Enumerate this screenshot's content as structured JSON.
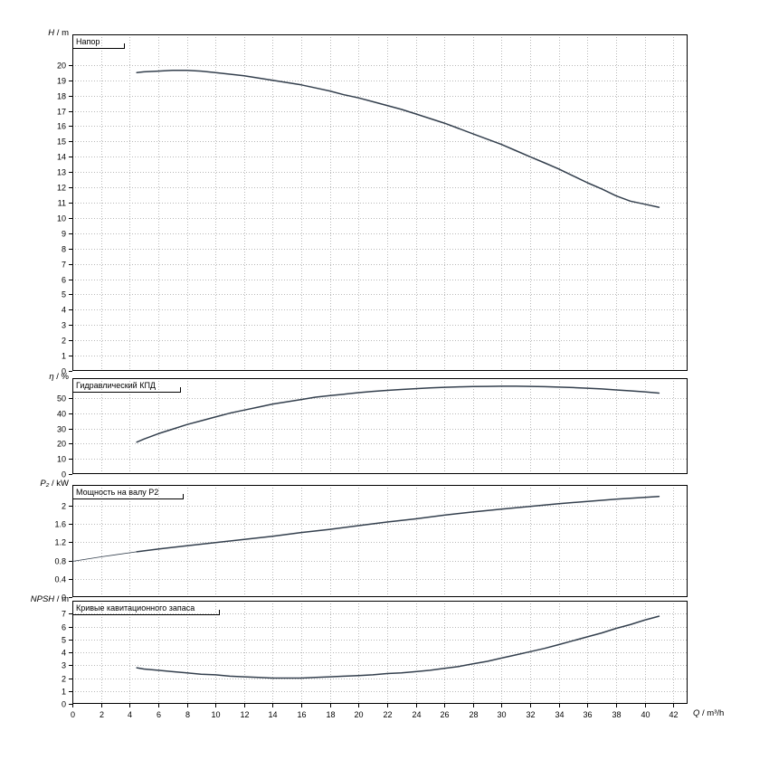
{
  "figure": {
    "background": "#ffffff",
    "curve_color": "#333f4d",
    "grid_color": "#b8b8b8",
    "axis_color": "#000000",
    "tick_label_color": "#000000"
  },
  "x_axis": {
    "label_var": "Q",
    "label_unit": "/ m³/h",
    "min": 0,
    "max": 43,
    "ticks": [
      0,
      2,
      4,
      6,
      8,
      10,
      12,
      14,
      16,
      18,
      20,
      22,
      24,
      26,
      28,
      30,
      32,
      34,
      36,
      38,
      40,
      42
    ]
  },
  "chart_data": [
    {
      "type": "line",
      "title": "Напор",
      "ylabel_var": "H",
      "ylabel_unit": "/ m",
      "xlabel": "Q / m³/h",
      "ylim": [
        0,
        22
      ],
      "yticks": [
        0,
        1,
        2,
        3,
        4,
        5,
        6,
        7,
        8,
        9,
        10,
        11,
        12,
        13,
        14,
        15,
        16,
        17,
        18,
        19,
        20
      ],
      "grid": true,
      "legend": "none",
      "series": [
        {
          "name": "head-curve",
          "width": 1.5,
          "points": [
            [
              4.5,
              19.5
            ],
            [
              5,
              19.55
            ],
            [
              6,
              19.6
            ],
            [
              7,
              19.65
            ],
            [
              8,
              19.65
            ],
            [
              9,
              19.6
            ],
            [
              10,
              19.5
            ],
            [
              11,
              19.4
            ],
            [
              12,
              19.3
            ],
            [
              13,
              19.15
            ],
            [
              14,
              19.0
            ],
            [
              15,
              18.85
            ],
            [
              16,
              18.7
            ],
            [
              17,
              18.5
            ],
            [
              18,
              18.3
            ],
            [
              19,
              18.05
            ],
            [
              20,
              17.85
            ],
            [
              21,
              17.6
            ],
            [
              22,
              17.35
            ],
            [
              23,
              17.1
            ],
            [
              24,
              16.8
            ],
            [
              25,
              16.5
            ],
            [
              26,
              16.2
            ],
            [
              27,
              15.85
            ],
            [
              28,
              15.5
            ],
            [
              29,
              15.15
            ],
            [
              30,
              14.8
            ],
            [
              31,
              14.4
            ],
            [
              32,
              14.0
            ],
            [
              33,
              13.6
            ],
            [
              34,
              13.2
            ],
            [
              35,
              12.75
            ],
            [
              36,
              12.3
            ],
            [
              37,
              11.9
            ],
            [
              38,
              11.45
            ],
            [
              39,
              11.1
            ],
            [
              40,
              10.9
            ],
            [
              41,
              10.7
            ]
          ]
        }
      ]
    },
    {
      "type": "line",
      "title": "Гидравлический КПД",
      "ylabel_var": "η",
      "ylabel_unit": "/ %",
      "ylim": [
        0,
        63
      ],
      "yticks": [
        0,
        10,
        20,
        30,
        40,
        50
      ],
      "grid": true,
      "legend": "none",
      "series": [
        {
          "name": "efficiency-curve",
          "width": 1.5,
          "points": [
            [
              4.5,
              21
            ],
            [
              5,
              23
            ],
            [
              6,
              26.5
            ],
            [
              7,
              29.5
            ],
            [
              8,
              32.5
            ],
            [
              9,
              35
            ],
            [
              10,
              37.5
            ],
            [
              11,
              40
            ],
            [
              12,
              42
            ],
            [
              13,
              44
            ],
            [
              14,
              46
            ],
            [
              15,
              47.5
            ],
            [
              16,
              49
            ],
            [
              17,
              50.5
            ],
            [
              18,
              51.5
            ],
            [
              19,
              52.5
            ],
            [
              20,
              53.5
            ],
            [
              21,
              54.3
            ],
            [
              22,
              55
            ],
            [
              23,
              55.6
            ],
            [
              24,
              56.1
            ],
            [
              25,
              56.6
            ],
            [
              26,
              57
            ],
            [
              27,
              57.3
            ],
            [
              28,
              57.5
            ],
            [
              29,
              57.6
            ],
            [
              30,
              57.7
            ],
            [
              31,
              57.7
            ],
            [
              32,
              57.6
            ],
            [
              33,
              57.4
            ],
            [
              34,
              57.1
            ],
            [
              35,
              56.8
            ],
            [
              36,
              56.4
            ],
            [
              37,
              55.9
            ],
            [
              38,
              55.3
            ],
            [
              39,
              54.7
            ],
            [
              40,
              54
            ],
            [
              41,
              53.2
            ]
          ]
        }
      ]
    },
    {
      "type": "line",
      "title": "Мощность на валу P2",
      "ylabel_var": "P₂",
      "ylabel_unit": "/ kW",
      "ylim": [
        0,
        2.45
      ],
      "yticks": [
        0,
        0.4,
        0.8,
        1.2,
        1.6,
        2
      ],
      "grid": true,
      "legend": "none",
      "series": [
        {
          "name": "shaft-power-extrapolated",
          "width": 0.8,
          "points": [
            [
              0,
              0.78
            ],
            [
              2,
              0.88
            ],
            [
              4.5,
              0.99
            ]
          ]
        },
        {
          "name": "shaft-power-curve",
          "width": 1.5,
          "points": [
            [
              4.5,
              0.99
            ],
            [
              6,
              1.05
            ],
            [
              8,
              1.12
            ],
            [
              10,
              1.19
            ],
            [
              12,
              1.26
            ],
            [
              14,
              1.33
            ],
            [
              16,
              1.41
            ],
            [
              18,
              1.48
            ],
            [
              20,
              1.56
            ],
            [
              22,
              1.64
            ],
            [
              24,
              1.71
            ],
            [
              26,
              1.79
            ],
            [
              28,
              1.86
            ],
            [
              30,
              1.92
            ],
            [
              32,
              1.98
            ],
            [
              34,
              2.04
            ],
            [
              36,
              2.09
            ],
            [
              38,
              2.14
            ],
            [
              40,
              2.18
            ],
            [
              41,
              2.2
            ]
          ]
        }
      ]
    },
    {
      "type": "line",
      "title": "Кривые кавитационного запаса",
      "ylabel_var": "NPSH",
      "ylabel_unit": "/ m",
      "ylim": [
        0,
        8
      ],
      "yticks": [
        0,
        1,
        2,
        3,
        4,
        5,
        6,
        7
      ],
      "grid": true,
      "legend": "none",
      "series": [
        {
          "name": "npsh-curve",
          "width": 1.5,
          "points": [
            [
              4.5,
              2.8
            ],
            [
              5,
              2.7
            ],
            [
              6,
              2.6
            ],
            [
              7,
              2.5
            ],
            [
              8,
              2.4
            ],
            [
              9,
              2.3
            ],
            [
              10,
              2.25
            ],
            [
              11,
              2.15
            ],
            [
              12,
              2.1
            ],
            [
              13,
              2.05
            ],
            [
              14,
              2.0
            ],
            [
              15,
              2.0
            ],
            [
              16,
              2.0
            ],
            [
              17,
              2.05
            ],
            [
              18,
              2.1
            ],
            [
              19,
              2.15
            ],
            [
              20,
              2.2
            ],
            [
              21,
              2.25
            ],
            [
              22,
              2.35
            ],
            [
              23,
              2.4
            ],
            [
              24,
              2.5
            ],
            [
              25,
              2.6
            ],
            [
              26,
              2.75
            ],
            [
              27,
              2.9
            ],
            [
              28,
              3.1
            ],
            [
              29,
              3.3
            ],
            [
              30,
              3.55
            ],
            [
              31,
              3.8
            ],
            [
              32,
              4.05
            ],
            [
              33,
              4.3
            ],
            [
              34,
              4.6
            ],
            [
              35,
              4.9
            ],
            [
              36,
              5.2
            ],
            [
              37,
              5.5
            ],
            [
              38,
              5.85
            ],
            [
              39,
              6.15
            ],
            [
              40,
              6.5
            ],
            [
              41,
              6.8
            ]
          ]
        }
      ]
    }
  ]
}
